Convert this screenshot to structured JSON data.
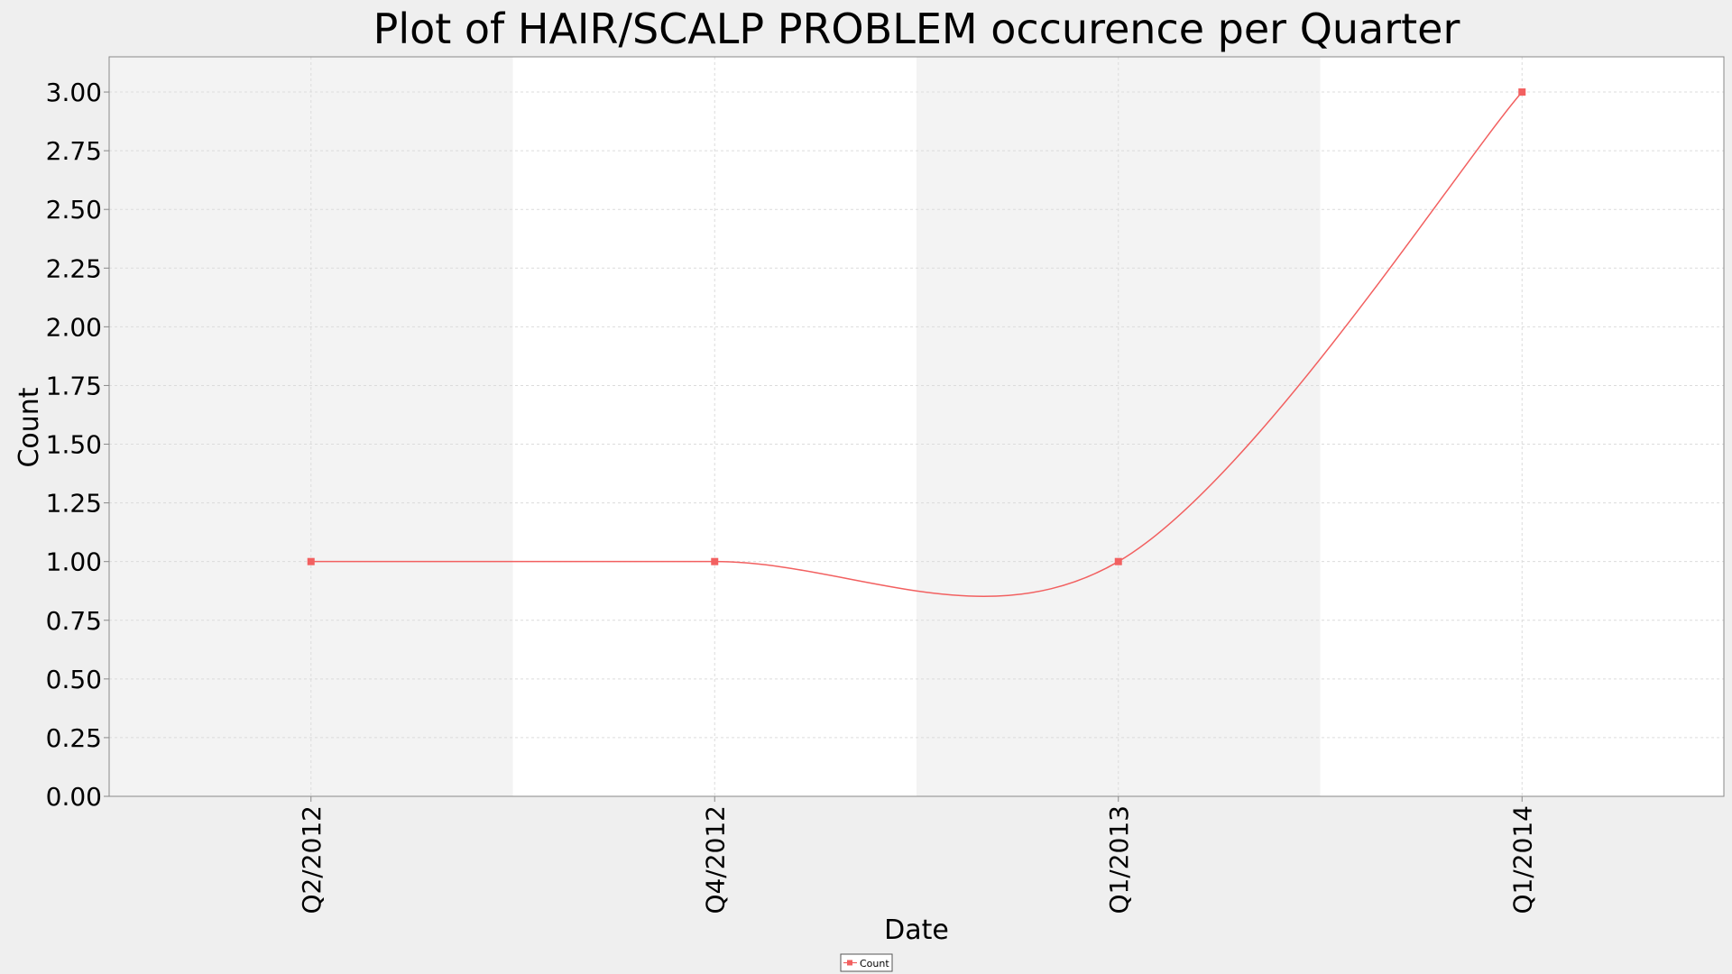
{
  "chart_data": {
    "type": "line",
    "title": "Plot of HAIR/SCALP PROBLEM occurence per Quarter",
    "xlabel": "Date",
    "ylabel": "Count",
    "categories": [
      "Q2/2012",
      "Q4/2012",
      "Q1/2013",
      "Q1/2014"
    ],
    "series": [
      {
        "name": "Count",
        "color": "#f26060",
        "values": [
          1,
          1,
          1,
          3
        ]
      }
    ],
    "ylim": [
      0,
      3.15
    ],
    "yticks": [
      "0.00",
      "0.25",
      "0.50",
      "0.75",
      "1.00",
      "1.25",
      "1.50",
      "1.75",
      "2.00",
      "2.25",
      "2.50",
      "2.75",
      "3.00"
    ],
    "smoothed": true,
    "grid": true,
    "alternating_bands": true,
    "legend": "bottom-center",
    "colors": {
      "band_shaded": "#f3f3f3",
      "band_plain": "#ffffff",
      "grid": "#dcdcdc",
      "axis": "#888888",
      "page_background": "#efefef"
    }
  }
}
